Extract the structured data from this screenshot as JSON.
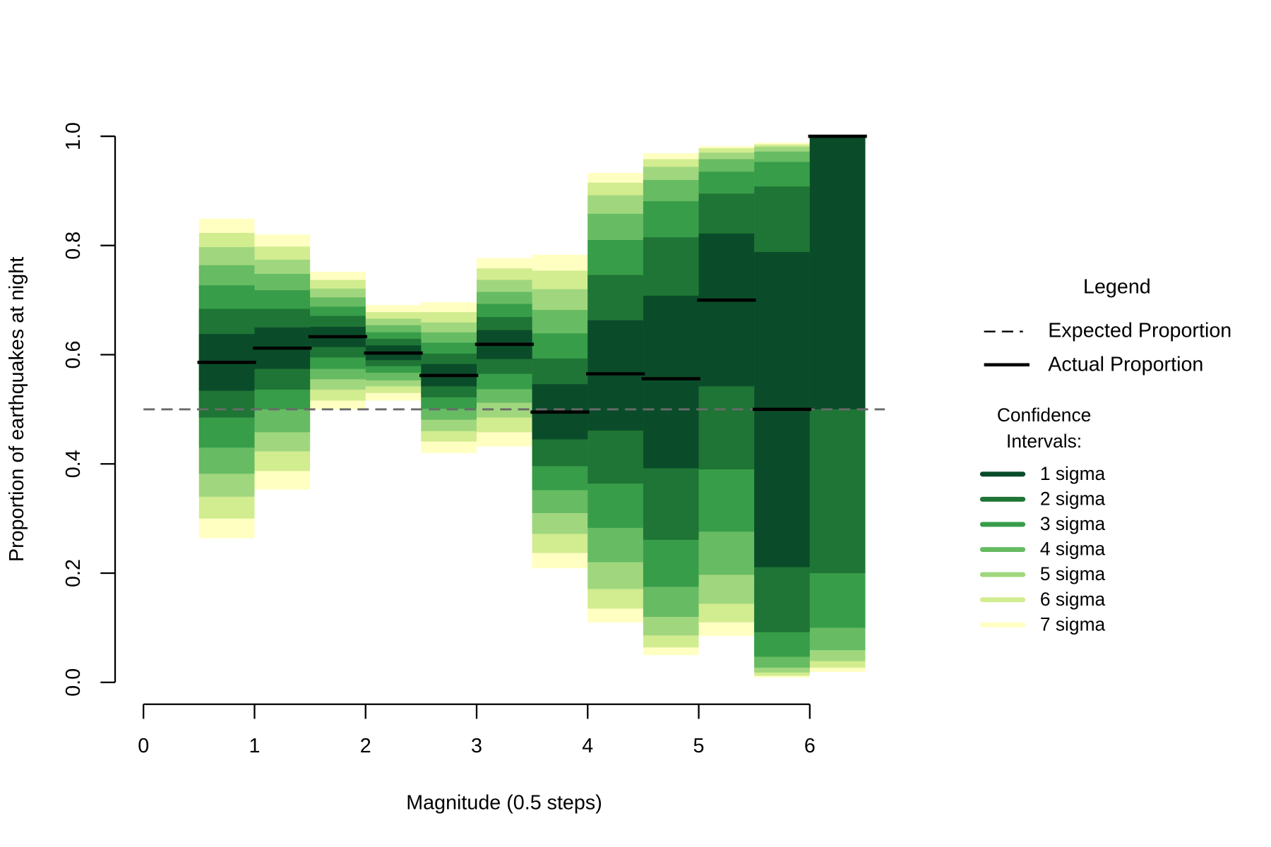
{
  "chart_data": {
    "type": "bar",
    "xlabel": "Magnitude (0.5 steps)",
    "ylabel": "Proportion of earthquakes at night",
    "bins": [
      0.5,
      1.0,
      1.5,
      2.0,
      2.5,
      3.0,
      3.5,
      4.0,
      4.5,
      5.0,
      5.5,
      6.0,
      6.5
    ],
    "xlim": [
      0,
      6.5
    ],
    "xticks": [
      0,
      1,
      2,
      3,
      4,
      5,
      6
    ],
    "ylim": [
      0,
      1
    ],
    "yticks": [
      0.0,
      0.2,
      0.4,
      0.6,
      0.8,
      1.0
    ],
    "expected": 0.5,
    "actual": {
      "name": "Actual Proportion",
      "color": "#000000",
      "values": [
        0.586,
        0.612,
        0.633,
        0.603,
        0.562,
        0.619,
        0.495,
        0.565,
        0.556,
        0.7,
        0.5,
        1.0
      ]
    },
    "expected_name": "Expected Proportion",
    "legend_title": "Legend",
    "ci_title": [
      "Confidence",
      "Intervals:"
    ],
    "intervals": [
      {
        "name": "1 sigma",
        "color": "#0a4c2a",
        "lower": [
          0.534,
          0.574,
          0.614,
          0.59,
          0.542,
          0.592,
          0.445,
          0.461,
          0.392,
          0.542,
          0.211,
          0.5
        ],
        "upper": [
          0.638,
          0.65,
          0.651,
          0.617,
          0.583,
          0.645,
          0.546,
          0.663,
          0.708,
          0.822,
          0.788,
          1.0
        ]
      },
      {
        "name": "2 sigma",
        "color": "#1f7535",
        "lower": [
          0.485,
          0.536,
          0.595,
          0.579,
          0.522,
          0.565,
          0.396,
          0.364,
          0.261,
          0.39,
          0.092,
          0.2
        ],
        "upper": [
          0.684,
          0.684,
          0.671,
          0.629,
          0.602,
          0.669,
          0.593,
          0.746,
          0.815,
          0.895,
          0.908,
          1.0
        ]
      },
      {
        "name": "3 sigma",
        "color": "#379d49",
        "lower": [
          0.43,
          0.5,
          0.574,
          0.567,
          0.501,
          0.537,
          0.352,
          0.283,
          0.175,
          0.276,
          0.047,
          0.1
        ],
        "upper": [
          0.727,
          0.718,
          0.688,
          0.641,
          0.622,
          0.693,
          0.639,
          0.81,
          0.881,
          0.935,
          0.953,
          1.0
        ]
      },
      {
        "name": "4 sigma",
        "color": "#67bb63",
        "lower": [
          0.382,
          0.458,
          0.555,
          0.553,
          0.481,
          0.512,
          0.31,
          0.22,
          0.12,
          0.197,
          0.027,
          0.059
        ],
        "upper": [
          0.764,
          0.748,
          0.705,
          0.654,
          0.641,
          0.715,
          0.682,
          0.858,
          0.92,
          0.958,
          0.972,
          1.0
        ]
      },
      {
        "name": "5 sigma",
        "color": "#a0d77e",
        "lower": [
          0.34,
          0.423,
          0.536,
          0.542,
          0.46,
          0.485,
          0.272,
          0.171,
          0.086,
          0.144,
          0.018,
          0.039
        ],
        "upper": [
          0.797,
          0.774,
          0.721,
          0.666,
          0.659,
          0.737,
          0.72,
          0.892,
          0.944,
          0.97,
          0.981,
          1.0
        ]
      },
      {
        "name": "6 sigma",
        "color": "#d2ec90",
        "lower": [
          0.3,
          0.387,
          0.516,
          0.53,
          0.441,
          0.458,
          0.237,
          0.135,
          0.064,
          0.11,
          0.012,
          0.027
        ],
        "upper": [
          0.823,
          0.798,
          0.737,
          0.678,
          0.678,
          0.758,
          0.754,
          0.915,
          0.958,
          0.978,
          0.985,
          1.0
        ]
      },
      {
        "name": "7 sigma",
        "color": "#ffffc2",
        "lower": [
          0.264,
          0.353,
          0.5,
          0.516,
          0.42,
          0.432,
          0.209,
          0.11,
          0.05,
          0.085,
          0.009,
          0.019
        ],
        "upper": [
          0.849,
          0.82,
          0.752,
          0.691,
          0.696,
          0.777,
          0.783,
          0.933,
          0.969,
          0.982,
          0.988,
          1.0
        ]
      }
    ]
  }
}
